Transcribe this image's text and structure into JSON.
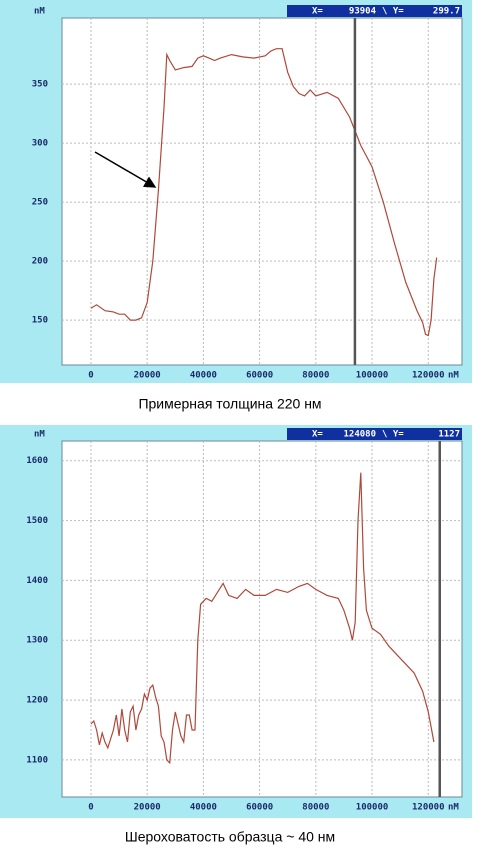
{
  "chart_data": [
    {
      "type": "line",
      "caption": "Примерная толщина 220 нм",
      "xlabel": "nM",
      "ylabel": "nM",
      "color": "#b0483a",
      "grid": true,
      "xlim": [
        -10300,
        132000
      ],
      "ylim": [
        112,
        406
      ],
      "xticks": [
        0,
        20000,
        40000,
        60000,
        80000,
        100000,
        120000
      ],
      "yticks": [
        150,
        200,
        250,
        300,
        350
      ],
      "cursor": {
        "x_label": "X=",
        "x": 93904,
        "y_label": "\\ Y=",
        "y": 299.7
      },
      "x": [
        0,
        2000,
        5000,
        8000,
        10000,
        12000,
        14000,
        16000,
        18000,
        20000,
        22000,
        24000,
        26000,
        27000,
        28000,
        30000,
        33000,
        36000,
        38000,
        40000,
        42000,
        44000,
        46000,
        50000,
        54000,
        58000,
        62000,
        64000,
        66000,
        68000,
        70000,
        72000,
        74000,
        76000,
        78000,
        80000,
        84000,
        88000,
        92000,
        96000,
        100000,
        104000,
        108000,
        112000,
        116000,
        118000,
        119000,
        120000,
        121000,
        122000,
        123000
      ],
      "values": [
        160,
        163,
        158,
        157,
        155,
        155,
        150,
        150,
        152,
        165,
        200,
        260,
        330,
        375,
        370,
        362,
        364,
        365,
        372,
        374,
        372,
        370,
        372,
        375,
        373,
        372,
        374,
        378,
        380,
        380,
        360,
        348,
        342,
        340,
        345,
        340,
        343,
        338,
        322,
        298,
        280,
        250,
        215,
        182,
        158,
        148,
        138,
        137,
        150,
        185,
        203
      ]
    },
    {
      "type": "line",
      "caption": "Шероховатость образца ~ 40 нм",
      "xlabel": "nM",
      "ylabel": "nM",
      "color": "#b0483a",
      "grid": true,
      "xlim": [
        -10300,
        132000
      ],
      "ylim": [
        1038,
        1633
      ],
      "xticks": [
        0,
        20000,
        40000,
        60000,
        80000,
        100000,
        120000
      ],
      "yticks": [
        1100,
        1200,
        1300,
        1400,
        1500,
        1600
      ],
      "cursor": {
        "x_label": "X=",
        "x": 124080,
        "y_label": "\\ Y=",
        "y": 1127
      },
      "x": [
        0,
        1000,
        2000,
        3000,
        4000,
        5000,
        6000,
        8000,
        9000,
        10000,
        11000,
        12000,
        13000,
        14000,
        15000,
        16000,
        17000,
        18000,
        19000,
        20000,
        21000,
        22000,
        23000,
        24000,
        25000,
        26000,
        27000,
        28000,
        29000,
        30000,
        31000,
        32000,
        33000,
        34000,
        35000,
        36000,
        37000,
        38000,
        39000,
        41000,
        43000,
        45000,
        47000,
        49000,
        52000,
        55000,
        58000,
        62000,
        66000,
        70000,
        74000,
        77000,
        80000,
        84000,
        88000,
        90000,
        92000,
        93000,
        94000,
        95000,
        96000,
        97000,
        98000,
        100000,
        103000,
        106000,
        109000,
        112000,
        115000,
        118000,
        120000,
        122000
      ],
      "values": [
        1160,
        1165,
        1150,
        1125,
        1145,
        1130,
        1120,
        1150,
        1175,
        1140,
        1185,
        1150,
        1130,
        1180,
        1190,
        1150,
        1175,
        1185,
        1210,
        1200,
        1220,
        1225,
        1205,
        1190,
        1140,
        1130,
        1100,
        1095,
        1150,
        1180,
        1160,
        1140,
        1130,
        1175,
        1175,
        1150,
        1150,
        1300,
        1360,
        1370,
        1365,
        1380,
        1395,
        1375,
        1370,
        1385,
        1375,
        1375,
        1385,
        1380,
        1390,
        1395,
        1385,
        1375,
        1370,
        1350,
        1320,
        1300,
        1330,
        1500,
        1580,
        1420,
        1350,
        1320,
        1310,
        1290,
        1275,
        1260,
        1245,
        1215,
        1180,
        1130
      ]
    }
  ]
}
